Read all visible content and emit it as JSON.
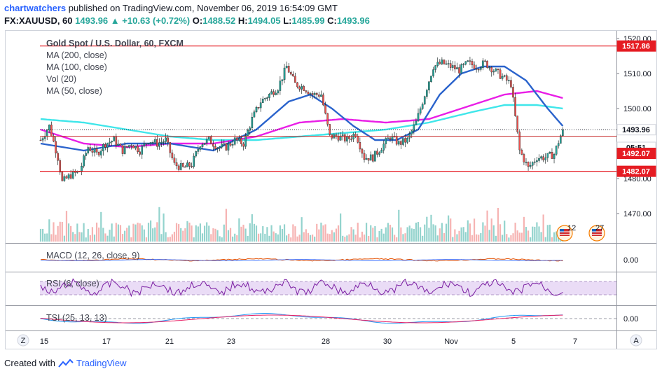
{
  "header": {
    "user": "chartwatchers",
    "published_text": "published on TradingView.com, November 06, 2019 16:54:09 GMT",
    "symbol": "FX:XAUUSD, 60",
    "last": "1493.96",
    "change": "+10.63 (+0.72%)",
    "o_label": "O:",
    "o": "1488.52",
    "h_label": "H:",
    "h": "1494.05",
    "l_label": "L:",
    "l": "1485.99",
    "c_label": "C:",
    "c": "1493.96"
  },
  "legend": {
    "title": "Gold Spot / U.S. Dollar, 60, FXCM",
    "ma200": "MA (200, close)",
    "ma100": "MA (100, close)",
    "vol": "Vol (20)",
    "ma50": "MA (50, close)"
  },
  "price_axis": {
    "ticks": [
      "1520.00",
      "1510.00",
      "1500.00",
      "1480.00",
      "1470.00"
    ],
    "level_labels": [
      {
        "text": "1517.86",
        "value": 1517.86,
        "bg": "#e51c23",
        "fg": "#ffffff"
      },
      {
        "text": "1493.96",
        "value": 1493.96,
        "bg": "#ffffff",
        "fg": "#131722"
      },
      {
        "text": "05:51",
        "value": 1488.9,
        "bg": "#ffffff",
        "fg": "#131722"
      },
      {
        "text": "1492.07",
        "value": 1487.2,
        "bg": "#e51c23",
        "fg": "#ffffff"
      },
      {
        "text": "1482.07",
        "value": 1482.07,
        "bg": "#e51c23",
        "fg": "#ffffff"
      }
    ],
    "partial_tick": "1"
  },
  "indicators": {
    "macd_label": "MACD (12, 26, close, 9)",
    "macd_tick": "0.00",
    "rsi_label": "RSI (6, close)",
    "tsi_label": "TSI (25, 13, 13)",
    "tsi_tick": "0.00"
  },
  "time_axis": {
    "labels": [
      "15",
      "17",
      "21",
      "23",
      "28",
      "30",
      "Nov",
      "5",
      "7"
    ],
    "left_button": "Z",
    "right_button": "A"
  },
  "events": [
    {
      "count": "12"
    },
    {
      "count": "27"
    }
  ],
  "footer": {
    "created": "Created with",
    "brand": "TradingView"
  },
  "colors": {
    "up": "#26a69a",
    "down": "#ef5350",
    "ma50": "#2a63cc",
    "ma100": "#e91ee6",
    "ma200": "#3fe6ea",
    "rsi": "#7b1fa2",
    "rsi_band": "#e8d6f5",
    "level": "#e51c23"
  },
  "chart_data": {
    "type": "candlestick",
    "title": "Gold Spot / U.S. Dollar, 60, FXCM",
    "ylim": [
      1462,
      1522
    ],
    "x_date_labels": [
      "15",
      "17",
      "21",
      "23",
      "28",
      "30",
      "Nov",
      "5",
      "7"
    ],
    "horizontal_levels": [
      1517.86,
      1482.07,
      1492.07
    ],
    "last_price": 1493.96,
    "close_anchors": [
      [
        0,
        1491
      ],
      [
        4,
        1495
      ],
      [
        8,
        1486
      ],
      [
        10,
        1479
      ],
      [
        14,
        1481
      ],
      [
        18,
        1482
      ],
      [
        22,
        1489
      ],
      [
        26,
        1487
      ],
      [
        30,
        1490
      ],
      [
        34,
        1491
      ],
      [
        38,
        1488
      ],
      [
        42,
        1490
      ],
      [
        46,
        1488
      ],
      [
        50,
        1491
      ],
      [
        54,
        1490
      ],
      [
        58,
        1491
      ],
      [
        62,
        1484
      ],
      [
        66,
        1483
      ],
      [
        70,
        1484
      ],
      [
        74,
        1490
      ],
      [
        78,
        1491
      ],
      [
        82,
        1489
      ],
      [
        86,
        1489
      ],
      [
        90,
        1491
      ],
      [
        94,
        1490
      ],
      [
        98,
        1497
      ],
      [
        102,
        1502
      ],
      [
        106,
        1504
      ],
      [
        110,
        1506
      ],
      [
        114,
        1512
      ],
      [
        118,
        1507
      ],
      [
        122,
        1506
      ],
      [
        126,
        1504
      ],
      [
        130,
        1504
      ],
      [
        134,
        1492
      ],
      [
        138,
        1492
      ],
      [
        142,
        1491
      ],
      [
        146,
        1493
      ],
      [
        150,
        1486
      ],
      [
        154,
        1486
      ],
      [
        158,
        1489
      ],
      [
        162,
        1492
      ],
      [
        166,
        1490
      ],
      [
        170,
        1491
      ],
      [
        174,
        1496
      ],
      [
        178,
        1504
      ],
      [
        182,
        1512
      ],
      [
        186,
        1513
      ],
      [
        190,
        1512
      ],
      [
        194,
        1511
      ],
      [
        198,
        1513
      ],
      [
        202,
        1512
      ],
      [
        206,
        1513
      ],
      [
        210,
        1511
      ],
      [
        214,
        1509
      ],
      [
        218,
        1507
      ],
      [
        222,
        1488
      ],
      [
        226,
        1483
      ],
      [
        230,
        1486
      ],
      [
        234,
        1486
      ],
      [
        238,
        1487
      ],
      [
        242,
        1494
      ]
    ],
    "ma50_anchors": [
      [
        0,
        1490
      ],
      [
        20,
        1488
      ],
      [
        40,
        1490
      ],
      [
        60,
        1490
      ],
      [
        80,
        1488
      ],
      [
        100,
        1494
      ],
      [
        115,
        1502
      ],
      [
        125,
        1504
      ],
      [
        135,
        1500
      ],
      [
        145,
        1495
      ],
      [
        155,
        1491
      ],
      [
        165,
        1491
      ],
      [
        175,
        1494
      ],
      [
        185,
        1504
      ],
      [
        195,
        1510
      ],
      [
        205,
        1512
      ],
      [
        215,
        1512
      ],
      [
        225,
        1508
      ],
      [
        235,
        1500
      ],
      [
        242,
        1495
      ]
    ],
    "ma100_anchors": [
      [
        0,
        1494
      ],
      [
        20,
        1490
      ],
      [
        40,
        1489
      ],
      [
        60,
        1490
      ],
      [
        80,
        1490
      ],
      [
        100,
        1492
      ],
      [
        120,
        1496
      ],
      [
        140,
        1497
      ],
      [
        160,
        1496
      ],
      [
        180,
        1497
      ],
      [
        200,
        1501
      ],
      [
        215,
        1504
      ],
      [
        230,
        1505
      ],
      [
        242,
        1503
      ]
    ],
    "ma200_anchors": [
      [
        0,
        1497
      ],
      [
        20,
        1496
      ],
      [
        40,
        1494
      ],
      [
        60,
        1492
      ],
      [
        80,
        1491
      ],
      [
        100,
        1491
      ],
      [
        120,
        1492
      ],
      [
        140,
        1493
      ],
      [
        160,
        1494
      ],
      [
        180,
        1496
      ],
      [
        200,
        1499
      ],
      [
        215,
        1501
      ],
      [
        230,
        1501
      ],
      [
        242,
        1500
      ]
    ],
    "rsi_range": [
      0,
      100
    ],
    "rsi_band": [
      30,
      70
    ],
    "tsi_zero": 0
  }
}
